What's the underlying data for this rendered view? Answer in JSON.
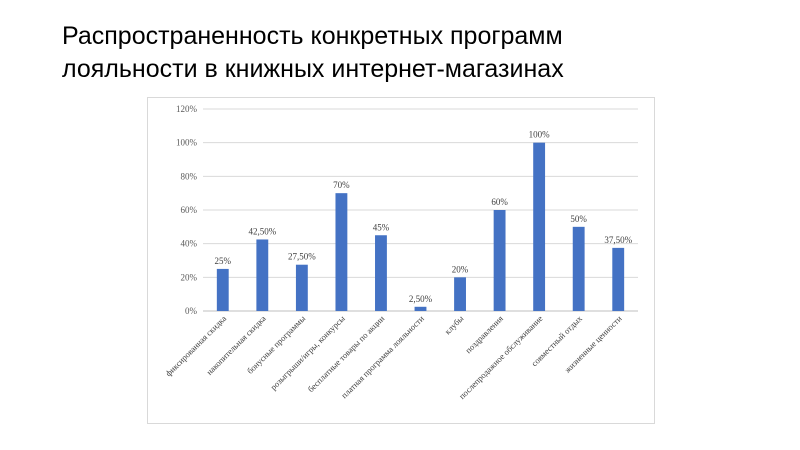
{
  "slide": {
    "title_line1": "Распространенность конкретных программ",
    "title_line2": "лояльности в книжных интернет-магазинах"
  },
  "chart_data": {
    "type": "bar",
    "title": "",
    "xlabel": "",
    "ylabel": "",
    "ylim": [
      0,
      120
    ],
    "yticks": [
      "0%",
      "20%",
      "40%",
      "60%",
      "80%",
      "100%",
      "120%"
    ],
    "grid": true,
    "legend": "none",
    "bar_color": "#4472c4",
    "categories": [
      "фиксированная скидка",
      "накопительная скидка",
      "бонусные программы",
      "розыгрыши/игры, конкурсы",
      "бесплатные товары по акции",
      "платная программа лояльности",
      "клубы",
      "поздравления",
      "послепродажное обслуживание",
      "совместный отдых",
      "жизненные ценности"
    ],
    "values": [
      25,
      42.5,
      27.5,
      70,
      45,
      2.5,
      20,
      60,
      100,
      50,
      37.5
    ],
    "data_labels": [
      "25%",
      "42,50%",
      "27,50%",
      "70%",
      "45%",
      "2,50%",
      "20%",
      "60%",
      "100%",
      "50%",
      "37,50%"
    ]
  }
}
